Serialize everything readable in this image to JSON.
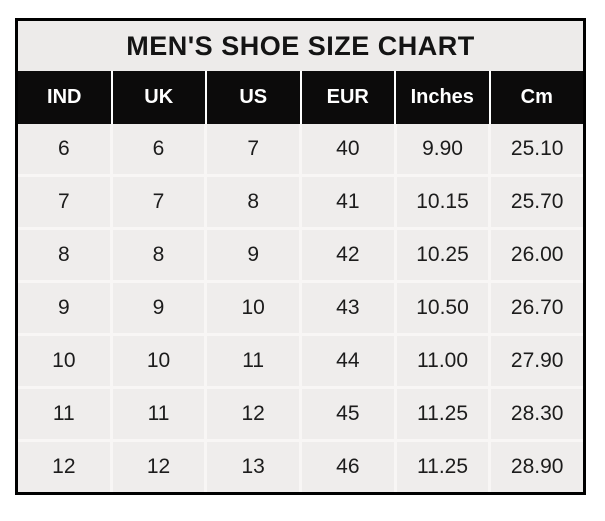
{
  "chart_data": {
    "type": "table",
    "title": "MEN'S SHOE SIZE CHART",
    "columns": [
      "IND",
      "UK",
      "US",
      "EUR",
      "Inches",
      "Cm"
    ],
    "rows": [
      [
        "6",
        "6",
        "7",
        "40",
        "9.90",
        "25.10"
      ],
      [
        "7",
        "7",
        "8",
        "41",
        "10.15",
        "25.70"
      ],
      [
        "8",
        "8",
        "9",
        "42",
        "10.25",
        "26.00"
      ],
      [
        "9",
        "9",
        "10",
        "43",
        "10.50",
        "26.70"
      ],
      [
        "10",
        "10",
        "11",
        "44",
        "11.00",
        "27.90"
      ],
      [
        "11",
        "11",
        "12",
        "45",
        "11.25",
        "28.30"
      ],
      [
        "12",
        "12",
        "13",
        "46",
        "11.25",
        "28.90"
      ]
    ]
  },
  "colors": {
    "border": "#000000",
    "title_bg": "#edebea",
    "title_text": "#141414",
    "header_bg": "#0c0b0b",
    "header_text": "#ffffff",
    "cell_bg": "#efedec",
    "cell_text": "#1c1c1c",
    "grid_line": "#f8f6f5"
  }
}
